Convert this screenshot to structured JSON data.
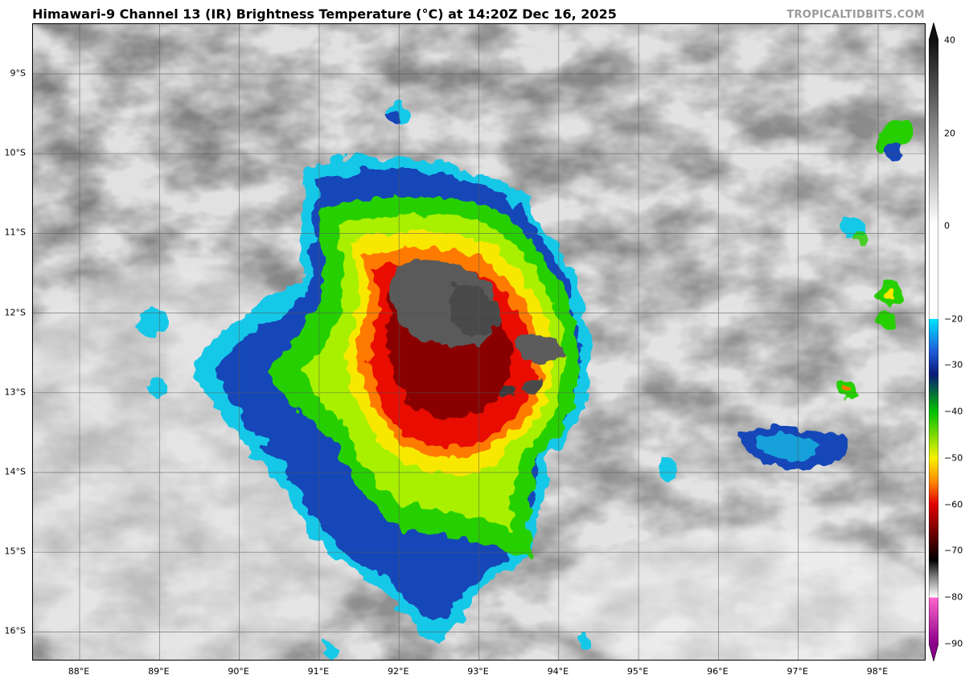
{
  "title": "Himawari-9 Channel 13 (IR) Brightness Temperature (°C) at 14:20Z Dec 16, 2025",
  "credit": "TROPICALTIDBITS.COM",
  "latitudes": [
    {
      "label": "9°S",
      "value": -9
    },
    {
      "label": "10°S",
      "value": -10
    },
    {
      "label": "11°S",
      "value": -11
    },
    {
      "label": "12°S",
      "value": -12
    },
    {
      "label": "13°S",
      "value": -13
    },
    {
      "label": "14°S",
      "value": -14
    },
    {
      "label": "15°S",
      "value": -15
    },
    {
      "label": "16°S",
      "value": -16
    }
  ],
  "longitudes": [
    {
      "label": "88°E",
      "value": 88
    },
    {
      "label": "89°E",
      "value": 89
    },
    {
      "label": "90°E",
      "value": 90
    },
    {
      "label": "91°E",
      "value": 91
    },
    {
      "label": "92°E",
      "value": 92
    },
    {
      "label": "93°E",
      "value": 93
    },
    {
      "label": "94°E",
      "value": 94
    },
    {
      "label": "95°E",
      "value": 95
    },
    {
      "label": "96°E",
      "value": 96
    },
    {
      "label": "97°E",
      "value": 97
    },
    {
      "label": "98°E",
      "value": 98
    }
  ],
  "colorbar": {
    "range": [
      -90,
      40
    ],
    "ticks": [
      {
        "label": "40",
        "value": 40
      },
      {
        "label": "20",
        "value": 20
      },
      {
        "label": "0",
        "value": 0
      },
      {
        "label": "−20",
        "value": -20
      },
      {
        "label": "−30",
        "value": -30
      },
      {
        "label": "−40",
        "value": -40
      },
      {
        "label": "−50",
        "value": -50
      },
      {
        "label": "−60",
        "value": -60
      },
      {
        "label": "−70",
        "value": -70
      },
      {
        "label": "−80",
        "value": -80
      },
      {
        "label": "−90",
        "value": -90
      }
    ],
    "colors": {
      "warm_dark": "#101010",
      "gray_mid": "#8c8c8c",
      "white": "#ffffff",
      "cyan": "#00e5ff",
      "blue": "#1f5bd8",
      "navy": "#0a1a78",
      "green": "#00c000",
      "yellow": "#f6f200",
      "orange": "#ff8c00",
      "red": "#e00000",
      "darkred": "#700000",
      "black": "#000000",
      "pink": "#ff66cc",
      "purple": "#8a008a"
    }
  },
  "storm_colors": {
    "outer_cyan": "#18c8e8",
    "outer_blue": "#1246b8",
    "green": "#28d000",
    "lime": "#a8f000",
    "yellow": "#f8e800",
    "orange": "#ff7a00",
    "red": "#e81000",
    "darkred": "#8a0000",
    "core_gray": "#5a5a5a"
  }
}
